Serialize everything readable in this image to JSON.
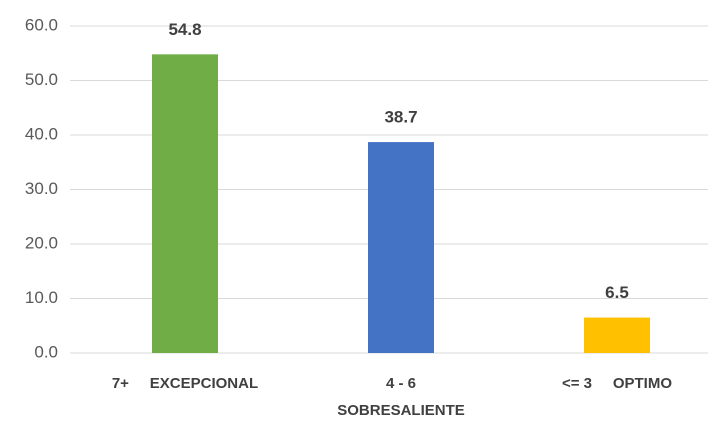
{
  "chart_data": {
    "type": "bar",
    "categories": [
      "7+     EXCEPCIONAL",
      "4 - 6 SOBRESALIENTE",
      "<= 3     OPTIMO"
    ],
    "values": [
      54.8,
      38.7,
      6.5
    ],
    "colors": [
      "#70ad47",
      "#4472c4",
      "#ffc000"
    ],
    "ylim": [
      0,
      60
    ],
    "yticks": [
      {
        "value": 0,
        "label": "0.0"
      },
      {
        "value": 10,
        "label": "10.0"
      },
      {
        "value": 20,
        "label": "20.0"
      },
      {
        "value": 30,
        "label": "30.0"
      },
      {
        "value": 40,
        "label": "40.0"
      },
      {
        "value": 50,
        "label": "50.0"
      },
      {
        "value": 60,
        "label": "60.0"
      }
    ],
    "grid": true
  }
}
